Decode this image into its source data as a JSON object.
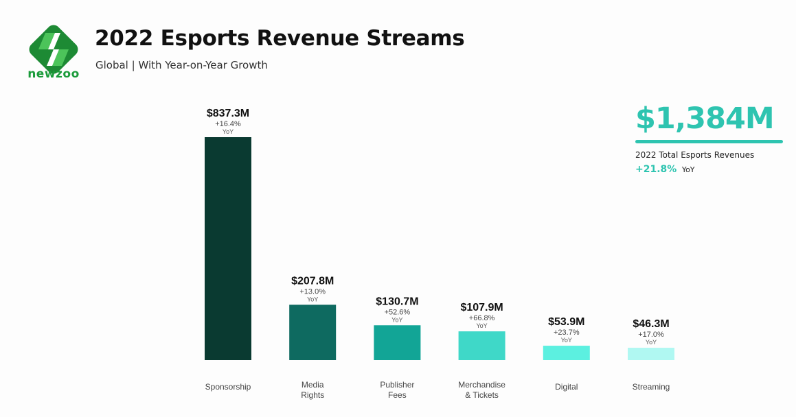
{
  "brand": {
    "name": "newzoo",
    "color": "#1a9b3a"
  },
  "header": {
    "title": "2022 Esports Revenue Streams",
    "subtitle": "Global | With Year-on-Year Growth"
  },
  "total": {
    "value": "$1,384M",
    "label": "2022 Total Esports Revenues",
    "growth": "+21.8%",
    "growth_suffix": "YoY",
    "color": "#2ec4b0"
  },
  "chart_data": {
    "type": "bar",
    "title": "2022 Esports Revenue Streams",
    "unit": "$M",
    "categories": [
      [
        "Sponsorship"
      ],
      [
        "Media",
        "Rights"
      ],
      [
        "Publisher",
        "Fees"
      ],
      [
        "Merchandise",
        "& Tickets"
      ],
      [
        "Digital"
      ],
      [
        "Streaming"
      ]
    ],
    "values": [
      837.3,
      207.8,
      130.7,
      107.9,
      53.9,
      46.3
    ],
    "value_labels": [
      "$837.3M",
      "$207.8M",
      "$130.7M",
      "$107.9M",
      "$53.9M",
      "$46.3M"
    ],
    "growth_labels": [
      "+16.4%",
      "+13.0%",
      "+52.6%",
      "+66.8%",
      "+23.7%",
      "+17.0%"
    ],
    "growth_suffix": "YoY",
    "colors": [
      "#0a3a31",
      "#0e6a60",
      "#12a596",
      "#3fd8c8",
      "#5cf0e0",
      "#b0f8f2"
    ],
    "ylim": [
      0,
      837.3
    ],
    "grid": false,
    "axes_visible": false
  }
}
